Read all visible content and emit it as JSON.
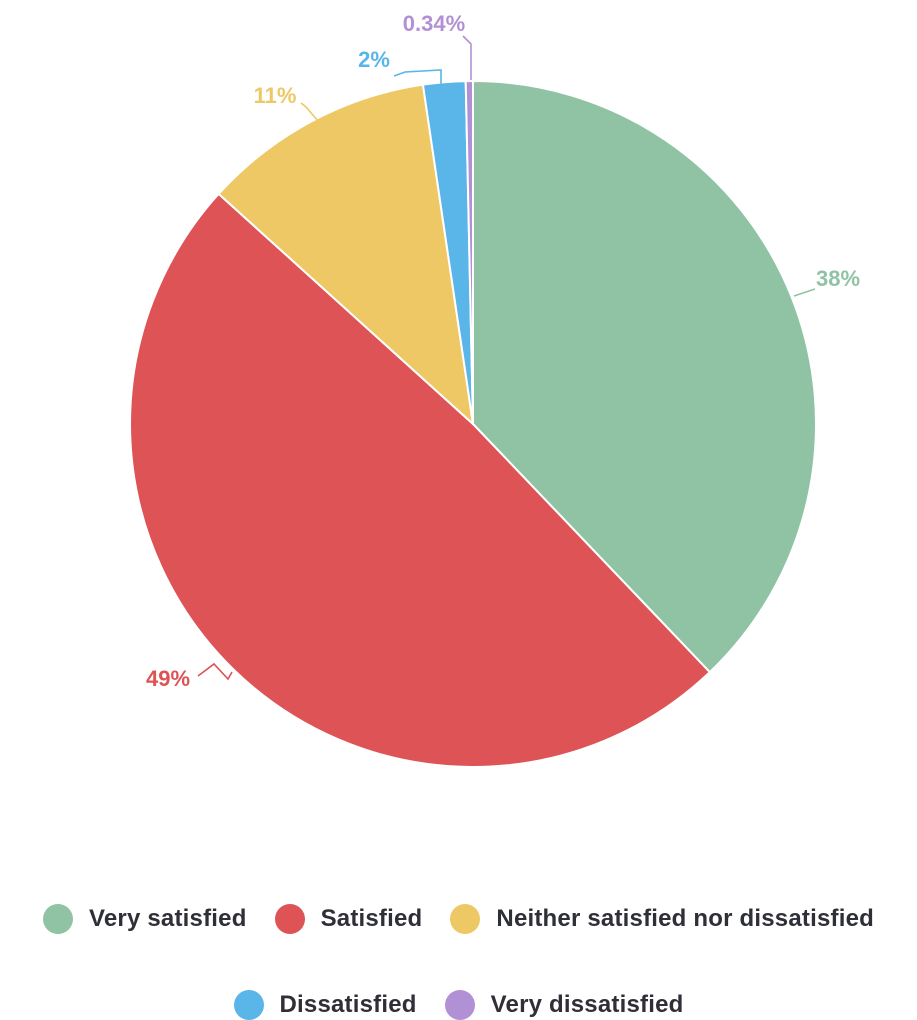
{
  "chart_data": {
    "type": "pie",
    "title": "",
    "categories": [
      "Very satisfied",
      "Satisfied",
      "Neither satisfied nor dissatisfied",
      "Dissatisfied",
      "Very dissatisfied"
    ],
    "values": [
      38,
      49,
      11,
      2,
      0.34
    ],
    "labels": [
      "38%",
      "49%",
      "11%",
      "2%",
      "0.34%"
    ],
    "colors": [
      "#8fc3a4",
      "#dd5356",
      "#eec865",
      "#5ab6e8",
      "#b290d6"
    ],
    "legend_position": "bottom",
    "start_angle": "top",
    "direction": "clockwise"
  },
  "legend": {
    "items": [
      {
        "label": "Very satisfied",
        "color": "#8fc3a4"
      },
      {
        "label": "Satisfied",
        "color": "#dd5356"
      },
      {
        "label": "Neither satisfied nor dissatisfied",
        "color": "#eec865"
      },
      {
        "label": "Dissatisfied",
        "color": "#5ab6e8"
      },
      {
        "label": "Very dissatisfied",
        "color": "#b290d6"
      }
    ]
  }
}
